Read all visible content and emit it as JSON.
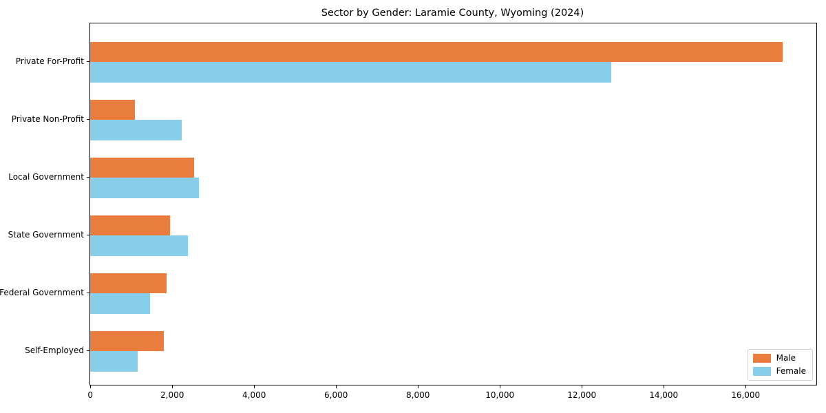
{
  "chart_data": {
    "type": "bar",
    "orientation": "horizontal",
    "title": "Sector by Gender: Laramie County, Wyoming (2024)",
    "categories": [
      "Private For-Profit",
      "Private Non-Profit",
      "Local Government",
      "State Government",
      "Federal Government",
      "Self-Employed"
    ],
    "series": [
      {
        "name": "Male",
        "color": "#e87d3e",
        "values": [
          16900,
          1090,
          2540,
          1950,
          1870,
          1790
        ]
      },
      {
        "name": "Female",
        "color": "#87ceeb",
        "values": [
          12730,
          2230,
          2660,
          2380,
          1460,
          1160
        ]
      }
    ],
    "xlabel": "",
    "ylabel": "",
    "xlim": [
      0,
      17730
    ],
    "x_ticks": [
      0,
      2000,
      4000,
      6000,
      8000,
      10000,
      12000,
      14000,
      16000
    ],
    "x_tick_labels": [
      "0",
      "2,000",
      "4,000",
      "6,000",
      "8,000",
      "10,000",
      "12,000",
      "14,000",
      "16,000"
    ],
    "grid": false,
    "legend_position": "lower right",
    "colors": {
      "axis": "#000000",
      "legend_border": "#cccccc",
      "background": "#ffffff"
    }
  }
}
